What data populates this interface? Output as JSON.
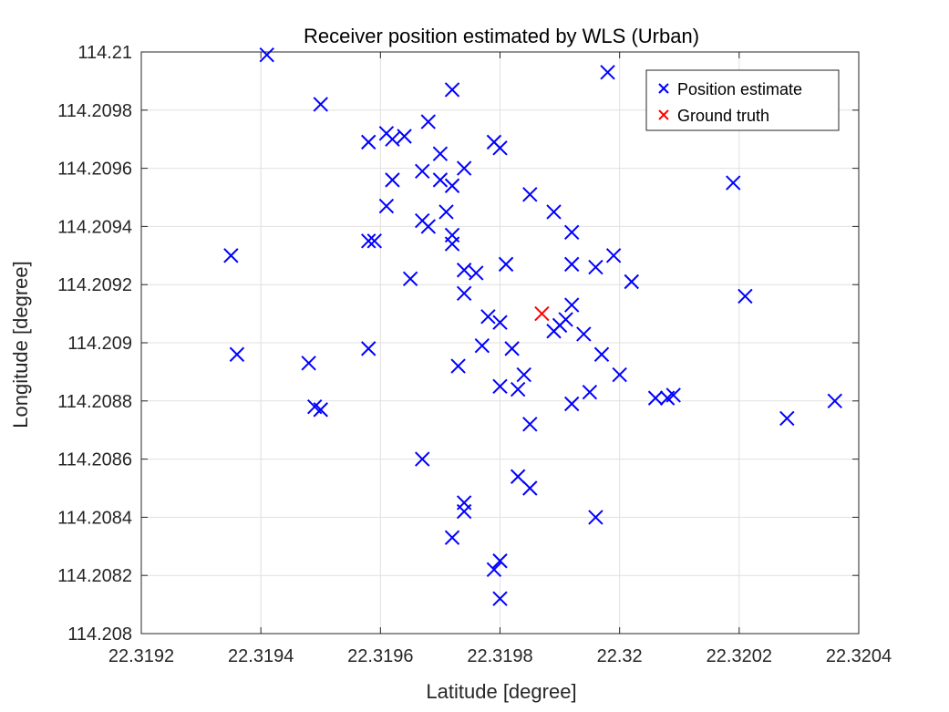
{
  "chart_data": {
    "type": "scatter",
    "title": "Receiver position estimated by WLS (Urban)",
    "xlabel": "Latitude [degree]",
    "ylabel": "Longitude [degree]",
    "xlim": [
      22.3192,
      22.3204
    ],
    "ylim": [
      114.208,
      114.21
    ],
    "xticks": [
      22.3192,
      22.3194,
      22.3196,
      22.3198,
      22.32,
      22.3202,
      22.3204
    ],
    "xtick_labels": [
      "22.3192",
      "22.3194",
      "22.3196",
      "22.3198",
      "22.32",
      "22.3202",
      "22.3204"
    ],
    "yticks": [
      114.208,
      114.2082,
      114.2084,
      114.2086,
      114.2088,
      114.209,
      114.2092,
      114.2094,
      114.2096,
      114.2098,
      114.21
    ],
    "ytick_labels": [
      "114.208",
      "114.2082",
      "114.2084",
      "114.2086",
      "114.2088",
      "114.209",
      "114.2092",
      "114.2094",
      "114.2096",
      "114.2098",
      "114.21"
    ],
    "grid": true,
    "legend_position": "top-right",
    "marker": "x",
    "series": [
      {
        "name": "Position estimate",
        "color": "#0000ff",
        "points": [
          [
            22.31941,
            114.20999
          ],
          [
            22.3195,
            114.20982
          ],
          [
            22.31935,
            114.2093
          ],
          [
            22.31936,
            114.20896
          ],
          [
            22.31948,
            114.20893
          ],
          [
            22.31949,
            114.20878
          ],
          [
            22.3195,
            114.20877
          ],
          [
            22.31958,
            114.20969
          ],
          [
            22.31961,
            114.20972
          ],
          [
            22.31962,
            114.2097
          ],
          [
            22.31964,
            114.20971
          ],
          [
            22.31962,
            114.20956
          ],
          [
            22.31961,
            114.20947
          ],
          [
            22.31958,
            114.20935
          ],
          [
            22.31959,
            114.20935
          ],
          [
            22.31958,
            114.20898
          ],
          [
            22.31965,
            114.20922
          ],
          [
            22.31968,
            114.20976
          ],
          [
            22.31967,
            114.20959
          ],
          [
            22.3197,
            114.20965
          ],
          [
            22.3197,
            114.20956
          ],
          [
            22.31972,
            114.20954
          ],
          [
            22.31974,
            114.2096
          ],
          [
            22.31972,
            114.20987
          ],
          [
            22.31971,
            114.20945
          ],
          [
            22.31967,
            114.20942
          ],
          [
            22.31968,
            114.2094
          ],
          [
            22.31972,
            114.20937
          ],
          [
            22.31972,
            114.20934
          ],
          [
            22.31974,
            114.20925
          ],
          [
            22.31976,
            114.20924
          ],
          [
            22.31974,
            114.20917
          ],
          [
            22.31973,
            114.20892
          ],
          [
            22.31967,
            114.2086
          ],
          [
            22.31974,
            114.20845
          ],
          [
            22.31974,
            114.20842
          ],
          [
            22.31972,
            114.20833
          ],
          [
            22.31979,
            114.20969
          ],
          [
            22.3198,
            114.20967
          ],
          [
            22.31978,
            114.20909
          ],
          [
            22.3198,
            114.20907
          ],
          [
            22.31977,
            114.20899
          ],
          [
            22.31982,
            114.20898
          ],
          [
            22.3198,
            114.20885
          ],
          [
            22.31983,
            114.20884
          ],
          [
            22.31984,
            114.20889
          ],
          [
            22.31985,
            114.20872
          ],
          [
            22.31983,
            114.20854
          ],
          [
            22.31985,
            114.2085
          ],
          [
            22.31981,
            114.20927
          ],
          [
            22.31985,
            114.20951
          ],
          [
            22.31979,
            114.20822
          ],
          [
            22.3198,
            114.20825
          ],
          [
            22.3198,
            114.20812
          ],
          [
            22.31989,
            114.20945
          ],
          [
            22.31992,
            114.20938
          ],
          [
            22.31992,
            114.20927
          ],
          [
            22.31992,
            114.20913
          ],
          [
            22.31991,
            114.20908
          ],
          [
            22.3199,
            114.20906
          ],
          [
            22.31989,
            114.20904
          ],
          [
            22.31994,
            114.20903
          ],
          [
            22.31992,
            114.20879
          ],
          [
            22.31995,
            114.20883
          ],
          [
            22.31996,
            114.20926
          ],
          [
            22.31997,
            114.20896
          ],
          [
            22.31999,
            114.2093
          ],
          [
            22.31998,
            114.20993
          ],
          [
            22.32002,
            114.20921
          ],
          [
            22.32,
            114.20889
          ],
          [
            22.31996,
            114.2084
          ],
          [
            22.32006,
            114.20881
          ],
          [
            22.32008,
            114.20881
          ],
          [
            22.32009,
            114.20882
          ],
          [
            22.32019,
            114.20955
          ],
          [
            22.32021,
            114.20916
          ],
          [
            22.32028,
            114.20874
          ],
          [
            22.32036,
            114.2088
          ]
        ]
      },
      {
        "name": "Ground truth",
        "color": "#ff0000",
        "points": [
          [
            22.31987,
            114.2091
          ]
        ]
      }
    ]
  }
}
